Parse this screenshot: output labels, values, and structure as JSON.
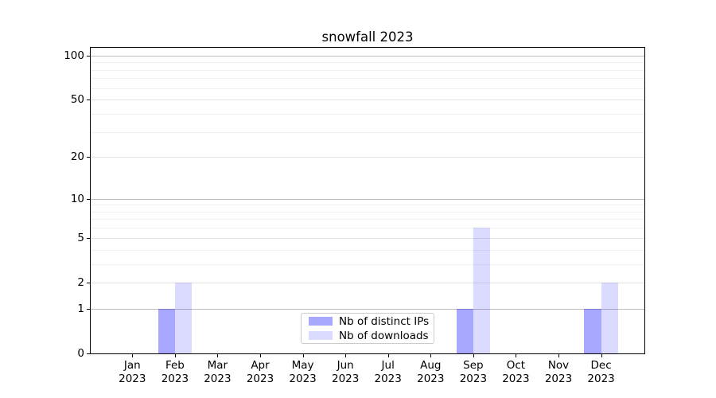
{
  "chart_data": {
    "type": "bar",
    "title": "snowfall 2023",
    "x": {
      "months": [
        "Jan",
        "Feb",
        "Mar",
        "Apr",
        "May",
        "Jun",
        "Jul",
        "Aug",
        "Sep",
        "Oct",
        "Nov",
        "Dec"
      ],
      "year": "2023"
    },
    "series": [
      {
        "name": "Nb of distinct IPs",
        "color": "rgba(0,0,255,0.34)",
        "values": [
          0,
          1,
          0,
          0,
          0,
          0,
          0,
          0,
          1,
          0,
          0,
          1
        ]
      },
      {
        "name": "Nb of downloads",
        "color": "rgba(0,0,255,0.14)",
        "values": [
          0,
          2,
          0,
          0,
          0,
          0,
          0,
          0,
          6,
          0,
          0,
          2
        ]
      }
    ],
    "yscale": "log1p",
    "ylim": [
      0,
      113
    ],
    "yticks": [
      0,
      1,
      2,
      5,
      10,
      20,
      50,
      100
    ],
    "yticks_minor": [
      3,
      4,
      6,
      7,
      8,
      9,
      30,
      40,
      60,
      70,
      80,
      90
    ],
    "grid": {
      "on": true,
      "decades": [
        1,
        10,
        100
      ],
      "decade_color": "#bcbcbc",
      "major_color": "#e3e3e3",
      "minor_color": "#f0f0f0"
    },
    "legend": {
      "position": "lower center",
      "items": [
        "Nb of distinct IPs",
        "Nb of downloads"
      ]
    },
    "colors": {
      "bar_dark_hex": "#a8a8f9",
      "bar_light_hex": "#dbdcf9",
      "axis": "#000000",
      "legend_border": "#cccccc"
    }
  }
}
